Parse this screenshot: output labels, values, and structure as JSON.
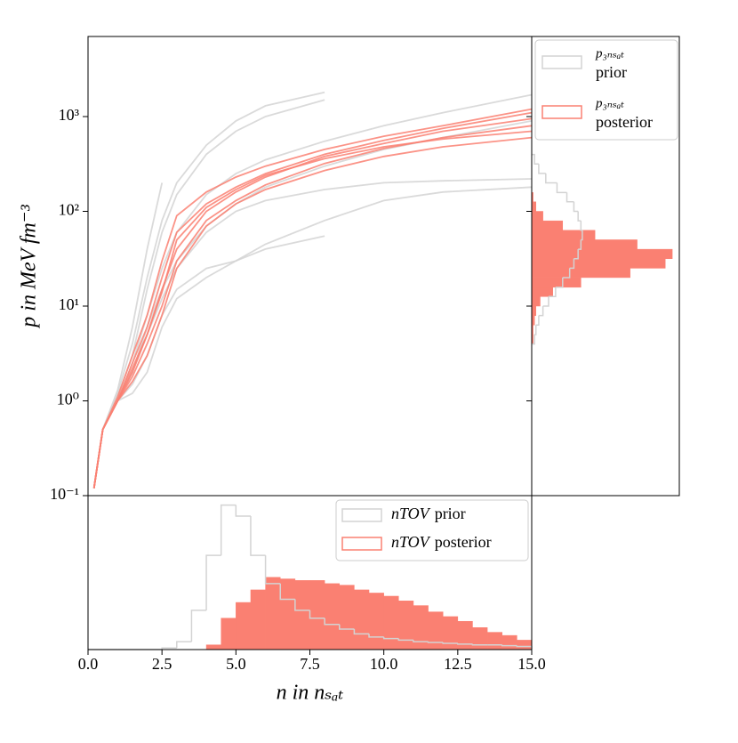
{
  "chart_data": [
    {
      "type": "line",
      "log_y": true,
      "ylabel": "p in MeV fm⁻³",
      "xlim": [
        0,
        15
      ],
      "ylim": [
        0.1,
        7000
      ],
      "yticks": [
        {
          "value": 0.1,
          "label": "10⁻¹"
        },
        {
          "value": 1,
          "label": "10⁰"
        },
        {
          "value": 10,
          "label": "10¹"
        },
        {
          "value": 100,
          "label": "10²"
        },
        {
          "value": 1000,
          "label": "10³"
        }
      ],
      "x": [
        0.2,
        0.5,
        1,
        1.5,
        2,
        2.5,
        3,
        4,
        5,
        6,
        8,
        10,
        12,
        15
      ],
      "series": [
        {
          "name": "prior",
          "color": "#d3d3d3",
          "values": [
            0.12,
            0.5,
            1.3,
            6,
            40,
            200,
            null,
            null,
            null,
            null,
            null,
            null,
            null,
            null
          ]
        },
        {
          "name": "prior",
          "color": "#d3d3d3",
          "values": [
            0.12,
            0.5,
            1.1,
            3,
            15,
            60,
            150,
            400,
            700,
            1000,
            1500,
            null,
            null,
            null
          ]
        },
        {
          "name": "prior",
          "color": "#d3d3d3",
          "values": [
            0.12,
            0.5,
            1,
            2,
            6,
            15,
            30,
            70,
            120,
            180,
            300,
            450,
            600,
            900
          ]
        },
        {
          "name": "prior",
          "color": "#d3d3d3",
          "values": [
            0.12,
            0.5,
            1,
            1.5,
            3,
            8,
            15,
            25,
            30,
            40,
            55,
            null,
            null,
            null
          ]
        },
        {
          "name": "prior",
          "color": "#d3d3d3",
          "values": [
            0.12,
            0.5,
            1,
            2,
            5,
            12,
            25,
            60,
            100,
            130,
            170,
            200,
            210,
            220
          ]
        },
        {
          "name": "prior",
          "color": "#d3d3d3",
          "values": [
            0.12,
            0.5,
            1.2,
            4,
            20,
            80,
            200,
            500,
            900,
            1300,
            1800,
            null,
            null,
            null
          ]
        },
        {
          "name": "prior",
          "color": "#d3d3d3",
          "values": [
            0.12,
            0.5,
            1,
            2.5,
            8,
            25,
            60,
            150,
            250,
            350,
            550,
            800,
            1100,
            1700
          ]
        },
        {
          "name": "prior",
          "color": "#d3d3d3",
          "values": [
            0.12,
            0.5,
            1,
            1.2,
            2,
            6,
            12,
            20,
            30,
            45,
            80,
            130,
            160,
            180
          ]
        },
        {
          "name": "posterior",
          "color": "#fa8072",
          "values": [
            0.12,
            0.5,
            1,
            2,
            5,
            15,
            40,
            100,
            160,
            230,
            380,
            520,
            700,
            950
          ]
        },
        {
          "name": "posterior",
          "color": "#fa8072",
          "values": [
            0.12,
            0.5,
            1,
            2.5,
            6,
            20,
            60,
            120,
            180,
            250,
            400,
            560,
            750,
            1100
          ]
        },
        {
          "name": "posterior",
          "color": "#fa8072",
          "values": [
            0.12,
            0.5,
            1,
            1.8,
            4,
            10,
            30,
            80,
            130,
            190,
            320,
            460,
            600,
            800
          ]
        },
        {
          "name": "posterior",
          "color": "#fa8072",
          "values": [
            0.12,
            0.5,
            1,
            2.2,
            5,
            14,
            50,
            110,
            170,
            240,
            360,
            480,
            580,
            700
          ]
        },
        {
          "name": "posterior",
          "color": "#fa8072",
          "values": [
            0.12,
            0.5,
            1,
            1.6,
            3,
            8,
            25,
            70,
            120,
            170,
            270,
            380,
            480,
            600
          ]
        },
        {
          "name": "posterior",
          "color": "#fa8072",
          "values": [
            0.12,
            0.5,
            1.1,
            3,
            8,
            30,
            90,
            160,
            230,
            300,
            450,
            620,
            800,
            1200
          ]
        }
      ]
    },
    {
      "type": "histogram",
      "orientation": "horizontal",
      "log_y": true,
      "variable": "p₃ₙₛₐₜ",
      "ylim": [
        0.1,
        7000
      ],
      "xlim": [
        0,
        1.05
      ],
      "bins": [
        3.98,
        5.01,
        6.31,
        7.94,
        10,
        12.6,
        15.8,
        20,
        25.1,
        31.6,
        39.8,
        50.1,
        63.1,
        79.4,
        100,
        126,
        158,
        200,
        251,
        316,
        398
      ],
      "series": [
        {
          "name": "prior",
          "color": "#d3d3d3",
          "style": "step",
          "values": [
            0.02,
            0.03,
            0.05,
            0.08,
            0.12,
            0.17,
            0.22,
            0.27,
            0.3,
            0.33,
            0.35,
            0.36,
            0.35,
            0.33,
            0.3,
            0.25,
            0.18,
            0.1,
            0.05,
            0.02
          ]
        },
        {
          "name": "posterior",
          "color": "#fa8072",
          "style": "filled",
          "values": [
            0.01,
            0.01,
            0.02,
            0.03,
            0.06,
            0.15,
            0.35,
            0.7,
            0.95,
            1.0,
            0.75,
            0.45,
            0.22,
            0.08,
            0.03,
            0.01,
            0,
            0,
            0,
            0
          ]
        }
      ]
    },
    {
      "type": "histogram",
      "orientation": "vertical",
      "variable": "nTOV",
      "xlabel": "n in nₛₐₜ",
      "xlim": [
        0,
        15
      ],
      "ylim": [
        0,
        0.98
      ],
      "xticks": [
        {
          "value": 0,
          "label": "0.0"
        },
        2.5,
        {
          "value": 5,
          "label": "5.0"
        },
        7.5,
        {
          "value": 10,
          "label": "10.0"
        },
        12.5,
        {
          "value": 15,
          "label": "15.0"
        }
      ],
      "bins": [
        0,
        0.5,
        1,
        1.5,
        2,
        2.5,
        3,
        3.5,
        4,
        4.5,
        5,
        5.5,
        6,
        6.5,
        7,
        7.5,
        8,
        8.5,
        9,
        9.5,
        10,
        10.5,
        11,
        11.5,
        12,
        12.5,
        13,
        13.5,
        14,
        14.5,
        15
      ],
      "series": [
        {
          "name": "prior",
          "color": "#d3d3d3",
          "style": "step",
          "values": [
            0,
            0,
            0,
            0,
            0,
            0.01,
            0.05,
            0.25,
            0.6,
            0.92,
            0.85,
            0.6,
            0.42,
            0.32,
            0.25,
            0.2,
            0.16,
            0.13,
            0.1,
            0.08,
            0.07,
            0.06,
            0.05,
            0.045,
            0.04,
            0.035,
            0.03,
            0.03,
            0.025,
            0.02
          ]
        },
        {
          "name": "posterior",
          "color": "#fa8072",
          "style": "filled",
          "values": [
            0,
            0,
            0,
            0,
            0,
            0,
            0,
            0,
            0.03,
            0.2,
            0.3,
            0.38,
            0.46,
            0.45,
            0.44,
            0.44,
            0.42,
            0.41,
            0.38,
            0.36,
            0.34,
            0.31,
            0.28,
            0.24,
            0.21,
            0.18,
            0.14,
            0.11,
            0.09,
            0.06
          ]
        }
      ]
    }
  ]
}
